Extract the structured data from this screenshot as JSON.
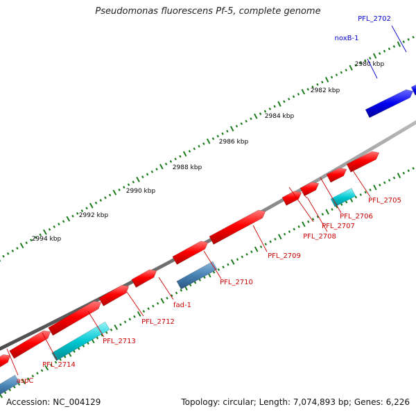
{
  "title": "Pseudomonas fluorescens Pf-5, complete genome",
  "accession": "Accession: NC_004129",
  "summary": "Topology: circular; Length: 7,074,893 bp; Genes: 6,226",
  "colors": {
    "forward_gene": "#ff0000",
    "reverse_gene_steel": "#4682b4",
    "reverse_gene_cyan": "#00c8d2",
    "blue_gene": "#0000ee",
    "backbone": "#888888",
    "tick": "#1a7a1a",
    "label_red": "#cc0000",
    "label_blue": "#0000cc"
  },
  "scale_labels": [
    "2980 kbp",
    "2982 kbp",
    "2984 kbp",
    "2986 kbp",
    "2988 kbp",
    "2990 kbp",
    "2992 kbp",
    "2994 kbp"
  ],
  "genes": [
    {
      "name": "PFL_2702",
      "strand": "forward",
      "color_key": "blue_gene",
      "label_color": "label_blue"
    },
    {
      "name": "noxB-1",
      "strand": "forward",
      "color_key": "blue_gene",
      "label_color": "label_blue"
    },
    {
      "name": "PFL_2705",
      "strand": "forward",
      "color_key": "forward_gene",
      "label_color": "label_red"
    },
    {
      "name": "PFL_2706",
      "strand": "forward",
      "color_key": "forward_gene",
      "label_color": "label_red"
    },
    {
      "name": "PFL_2707",
      "strand": "forward",
      "color_key": "forward_gene",
      "label_color": "label_red"
    },
    {
      "name": "PFL_2708",
      "strand": "forward",
      "color_key": "forward_gene",
      "label_color": "label_red"
    },
    {
      "name": "PFL_2709",
      "strand": "forward",
      "color_key": "forward_gene",
      "label_color": "label_red"
    },
    {
      "name": "PFL_2710",
      "strand": "reverse",
      "color_key": "reverse_gene_steel",
      "label_color": "label_red"
    },
    {
      "name": "fad-1",
      "strand": "forward",
      "color_key": "forward_gene",
      "label_color": "label_red"
    },
    {
      "name": "PFL_2712",
      "strand": "forward",
      "color_key": "forward_gene",
      "label_color": "label_red"
    },
    {
      "name": "PFL_2713",
      "strand": "reverse",
      "color_key": "reverse_gene_cyan",
      "label_color": "label_red"
    },
    {
      "name": "PFL_2714",
      "strand": "forward",
      "color_key": "forward_gene",
      "label_color": "label_red"
    },
    {
      "name": "aspC",
      "strand": "reverse",
      "color_key": "reverse_gene_steel",
      "label_color": "label_red"
    }
  ]
}
